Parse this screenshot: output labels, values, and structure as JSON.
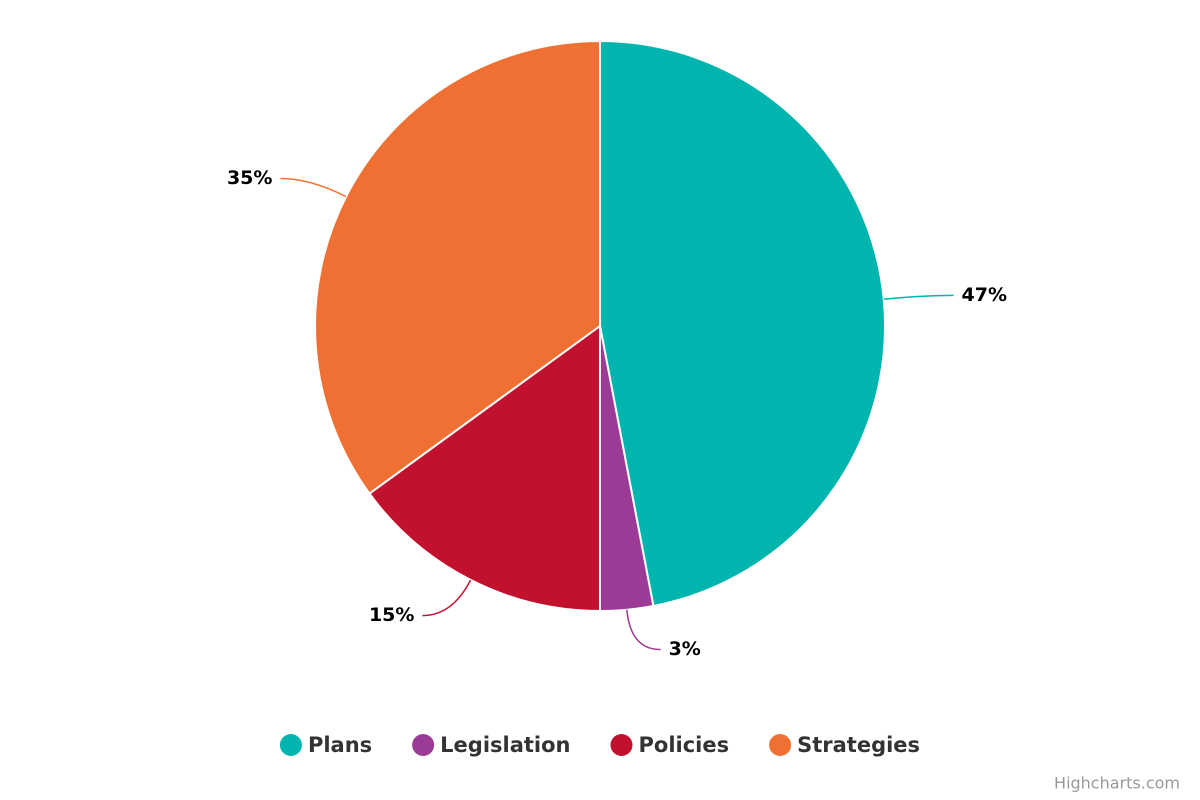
{
  "chart_data": {
    "type": "pie",
    "categories": [
      "Plans",
      "Legislation",
      "Policies",
      "Strategies"
    ],
    "values": [
      47,
      3,
      15,
      35
    ],
    "value_labels": [
      "47%",
      "3%",
      "15%",
      "35%"
    ],
    "colors": [
      "#00b5ad",
      "#9c3b96",
      "#c1112f",
      "#f07033"
    ],
    "credit": "Highcharts.com"
  }
}
